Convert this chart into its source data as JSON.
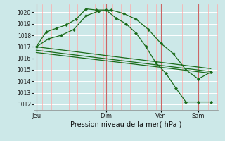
{
  "xlabel": "Pression niveau de la mer( hPa )",
  "bg_color": "#cce8e8",
  "grid_color_h": "#ffffff",
  "grid_color_v": "#ffaaaa",
  "line_color": "#1a6b1a",
  "ylim": [
    1011.5,
    1020.7
  ],
  "xlim": [
    -0.1,
    7.3
  ],
  "yticks": [
    1012,
    1013,
    1014,
    1015,
    1016,
    1017,
    1018,
    1019,
    1020
  ],
  "day_labels": [
    "Jeu",
    "Dim",
    "Ven",
    "Sam"
  ],
  "day_positions": [
    0.0,
    2.8,
    5.0,
    6.5
  ],
  "lines": [
    {
      "x": [
        0.0,
        0.4,
        0.8,
        1.2,
        1.6,
        2.0,
        2.4,
        2.8,
        3.2,
        3.6,
        4.0,
        4.4,
        4.8,
        5.2,
        5.6,
        6.0,
        6.5,
        7.0
      ],
      "y": [
        1017.0,
        1018.3,
        1018.6,
        1018.9,
        1019.4,
        1020.3,
        1020.2,
        1020.2,
        1019.5,
        1019.0,
        1018.2,
        1017.0,
        1015.6,
        1014.7,
        1013.4,
        1012.2,
        1012.2,
        1012.2
      ],
      "has_markers": true
    },
    {
      "x": [
        0.0,
        0.5,
        1.0,
        1.5,
        2.0,
        2.5,
        3.0,
        3.5,
        4.0,
        4.5,
        5.0,
        5.5,
        6.0,
        6.5,
        7.0
      ],
      "y": [
        1017.0,
        1017.7,
        1018.0,
        1018.5,
        1019.7,
        1020.1,
        1020.2,
        1019.9,
        1019.4,
        1018.5,
        1017.3,
        1016.4,
        1015.0,
        1014.2,
        1014.8
      ],
      "has_markers": true
    },
    {
      "x": [
        0.0,
        7.0
      ],
      "y": [
        1017.0,
        1015.1
      ],
      "has_markers": false
    },
    {
      "x": [
        0.0,
        7.0
      ],
      "y": [
        1016.7,
        1014.85
      ],
      "has_markers": false
    },
    {
      "x": [
        0.0,
        7.0
      ],
      "y": [
        1016.5,
        1014.7
      ],
      "has_markers": false
    }
  ]
}
